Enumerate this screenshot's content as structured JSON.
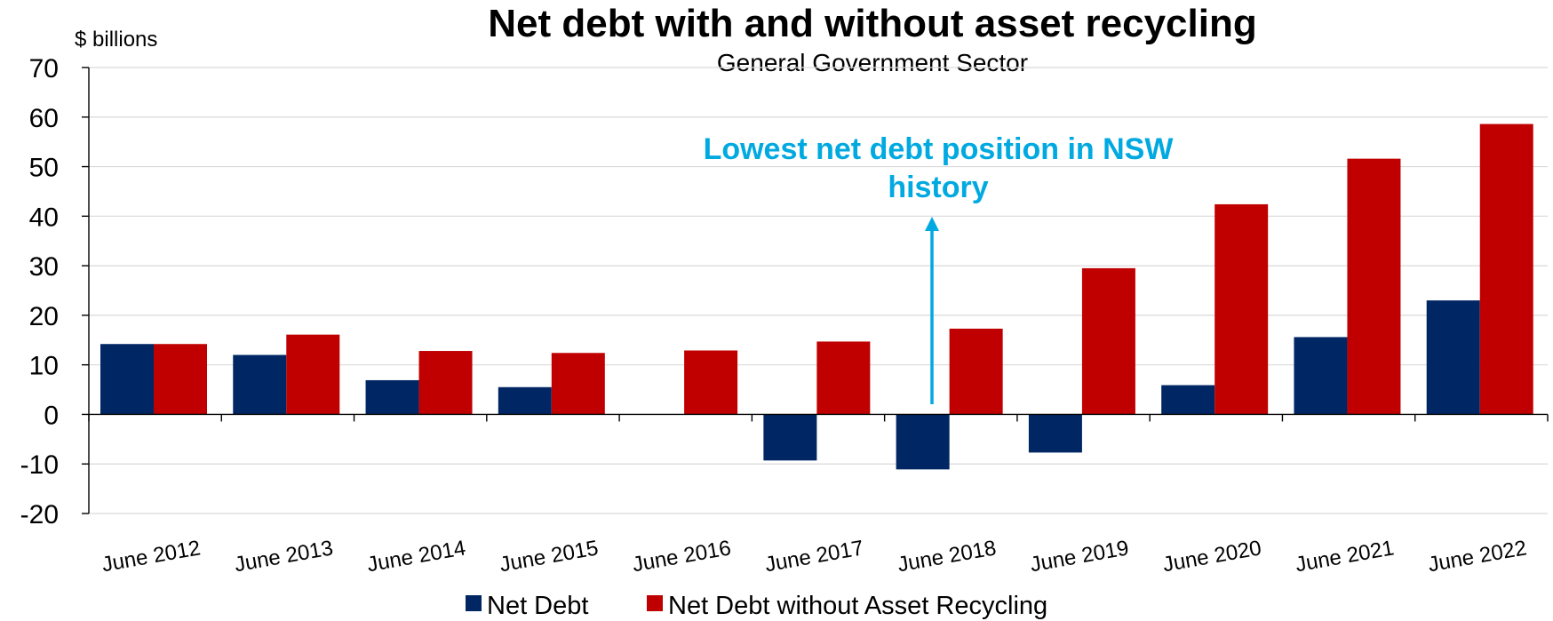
{
  "chart_data": {
    "type": "bar",
    "title": "Net debt with and without asset recycling",
    "subtitle": "General Government Sector",
    "y_unit_label": "$ billions",
    "categories": [
      "June 2012",
      "June 2013",
      "June 2014",
      "June 2015",
      "June 2016",
      "June 2017",
      "June 2018",
      "June 2019",
      "June 2020",
      "June 2021",
      "June 2022"
    ],
    "series": [
      {
        "name": "Net Debt",
        "color": "#002664",
        "values": [
          14.2,
          12.0,
          6.9,
          5.5,
          0.0,
          -9.3,
          -11.1,
          -7.7,
          5.9,
          15.6,
          23.0
        ]
      },
      {
        "name": "Net Debt without Asset Recycling",
        "color": "#c00000",
        "values": [
          14.2,
          16.1,
          12.8,
          12.4,
          12.9,
          14.7,
          17.3,
          29.5,
          42.4,
          51.6,
          58.6
        ]
      }
    ],
    "ylim": [
      -20,
      70
    ],
    "yticks": [
      "70",
      "60",
      "50",
      "40",
      "30",
      "20",
      "10",
      "0",
      "-10",
      "-20"
    ],
    "grid": true,
    "legend_position": "bottom",
    "annotation": {
      "lines": [
        "Lowest net debt position in NSW",
        "history"
      ],
      "color": "#00a9e0",
      "target_category": "June 2018"
    }
  }
}
